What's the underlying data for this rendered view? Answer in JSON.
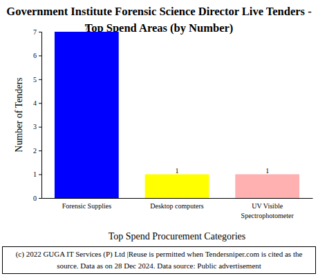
{
  "chart_data": {
    "type": "bar",
    "title": "Government Institute Forensic Science Director Live Tenders - Top Spend Areas (by Number)",
    "x_label": "Top Spend Procurement Categories",
    "y_label": "Number of Tenders",
    "categories": [
      "Forensic Supplies",
      "Desktop computers",
      "UV Visible Spectrophotometer"
    ],
    "values": [
      7,
      1,
      1
    ],
    "colors": [
      "#0000ff",
      "#ffff00",
      "#ffb0b0"
    ],
    "ylim": [
      0,
      7
    ],
    "yticks": [
      0,
      1,
      2,
      3,
      4,
      5,
      6,
      7
    ],
    "grid": false,
    "data_labels": true,
    "footer": "(c) 2022 GUGA IT Services (P) Ltd |Reuse is permitted when Tendersniper.com is cited as the source. Data as on 28 Dec 2024. Data source: Public advertisement"
  }
}
